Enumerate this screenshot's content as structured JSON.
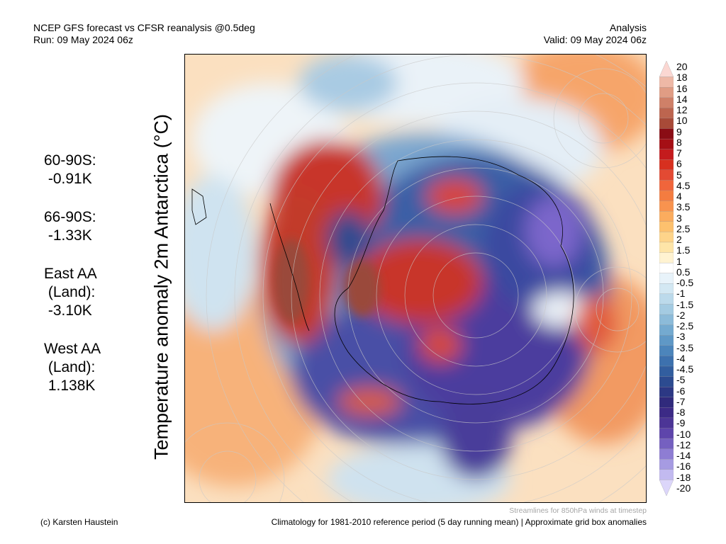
{
  "header": {
    "title": "NCEP GFS forecast vs CFSR reanalysis @0.5deg",
    "run": "Run: 09 May 2024 06z",
    "type": "Analysis",
    "valid": "Valid: 09 May 2024 06z"
  },
  "stats": [
    {
      "lines": [
        "60-90S:",
        " -0.91K"
      ]
    },
    {
      "lines": [
        "66-90S:",
        " -1.33K"
      ]
    },
    {
      "lines": [
        "East AA",
        " (Land):",
        " -3.10K"
      ]
    },
    {
      "lines": [
        "West AA",
        " (Land):",
        " 1.138K"
      ]
    }
  ],
  "vertical_label": "Temperature anomaly 2m Antarctica (°C)",
  "colorbar": {
    "labels": [
      "20",
      "18",
      "16",
      "14",
      "12",
      "10",
      "9",
      "8",
      "7",
      "6",
      "5",
      "4.5",
      "4",
      "3.5",
      "3",
      "2.5",
      "2",
      "1.5",
      "1",
      "0.5",
      "-0.5",
      "-1",
      "-1.5",
      "-2",
      "-2.5",
      "-3",
      "-3.5",
      "-4",
      "-4.5",
      "-5",
      "-6",
      "-7",
      "-8",
      "-9",
      "-10",
      "-12",
      "-14",
      "-16",
      "-18",
      "-20"
    ],
    "colors": [
      "#fbd7d2",
      "#eeb8a6",
      "#e09c84",
      "#cf8068",
      "#bd654f",
      "#a84a38",
      "#8a0d15",
      "#a50f15",
      "#c41b1d",
      "#d7301f",
      "#e34a33",
      "#f0653b",
      "#f47c40",
      "#f8934f",
      "#fbac5e",
      "#fdc16e",
      "#fed48a",
      "#fee5a8",
      "#fff3d1",
      "#ffffff",
      "#e8f3fa",
      "#d3e8f3",
      "#bcdaeb",
      "#a4cbe2",
      "#8cbbd9",
      "#74aad0",
      "#5f98c6",
      "#4c85bb",
      "#3d71ae",
      "#325e9f",
      "#2c4b90",
      "#2c3884",
      "#302a7c",
      "#3c2a86",
      "#4c3596",
      "#5e45ab",
      "#7560c0",
      "#8e7dd3",
      "#a69be2",
      "#c2baf0",
      "#dcd6fa"
    ]
  },
  "footer": {
    "streamlines": "Streamlines for 850hPa winds at timestep",
    "credit": "(c) Karsten Haustein",
    "climatology": "Climatology for 1981-2010 reference period (5 day running mean) | Approximate grid box anomalies"
  }
}
